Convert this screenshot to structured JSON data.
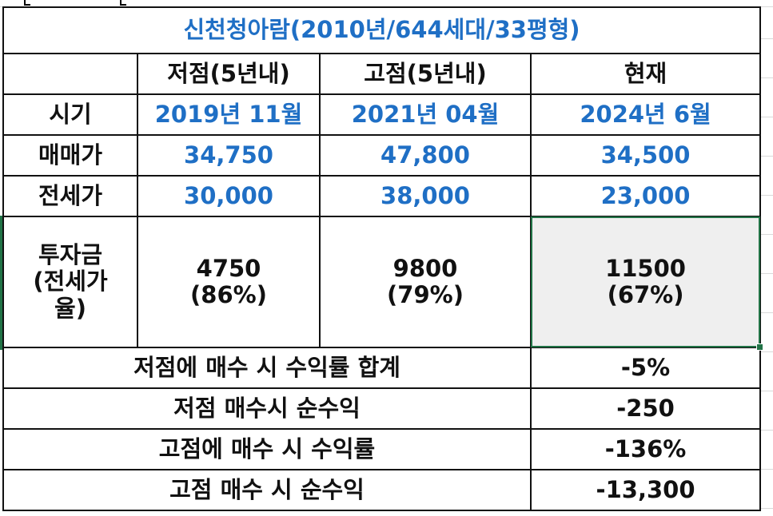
{
  "title": "신천청아람(2010년/644세대/33평형)",
  "header": {
    "low": "저점(5년내)",
    "high": "고점(5년내)",
    "current": "현재"
  },
  "rows": {
    "period": {
      "label": "시기",
      "low": "2019년 11월",
      "high": "2021년 04월",
      "current": "2024년 6월"
    },
    "sale": {
      "label": "매매가",
      "low": "34,750",
      "high": "47,800",
      "current": "34,500"
    },
    "jeonse": {
      "label": "전세가",
      "low": "30,000",
      "high": "38,000",
      "current": "23,000"
    },
    "investment": {
      "label_line1": "투자금",
      "label_line2": "(전세가",
      "label_line3": "율)",
      "low_amount": "4750",
      "low_ratio": "(86%)",
      "high_amount": "9800",
      "high_ratio": "(79%)",
      "current_amount": "11500",
      "current_ratio": "(67%)"
    }
  },
  "summary": [
    {
      "label": "저점에 매수 시 수익률 합계",
      "value": "-5%"
    },
    {
      "label": "저점 매수시 순수익",
      "value": "-250"
    },
    {
      "label": "고점에 매수 시 수익률",
      "value": "-136%"
    },
    {
      "label": "고점 매수 시 순수익",
      "value": "-13,300"
    }
  ],
  "colors": {
    "value_blue": "#1f6fc5",
    "selection_green": "#217346",
    "shaded_cell": "#efefef"
  }
}
